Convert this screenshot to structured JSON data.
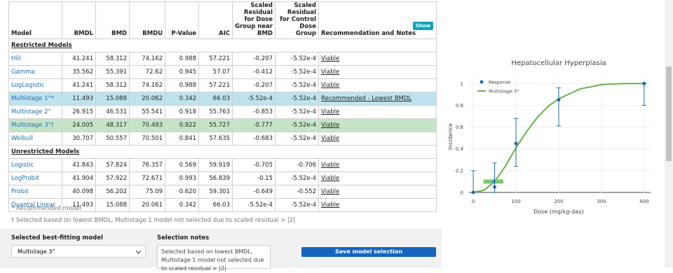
{
  "table": {
    "headers": [
      "Model",
      "BMDL",
      "BMD",
      "BMDU",
      "P-Value",
      "AIC",
      "Scaled Residual for Dose Group near BMD",
      "Scaled Residual for Control Dose Group",
      "Recommendation and Notes"
    ],
    "show_button": "Show",
    "groups": [
      {
        "label": "Restricted Models",
        "rows": [
          {
            "cells": [
              "Hill",
              "41.241",
              "58.312",
              "74.162",
              "0.988",
              "57.221",
              "-0.207",
              "-5.52e-4",
              "Viable"
            ]
          },
          {
            "cells": [
              "Gamma",
              "35.562",
              "55.391",
              "72.62",
              "0.945",
              "57.07",
              "-0.412",
              "-5.52e-4",
              "Viable"
            ]
          },
          {
            "cells": [
              "LogLogistic",
              "41.241",
              "58.312",
              "74.162",
              "0.988",
              "57.221",
              "-0.207",
              "-5.52e-4",
              "Viable"
            ]
          },
          {
            "cells": [
              "Multistage 1°*",
              "11.493",
              "15.088",
              "20.062",
              "0.342",
              "66.03",
              "-5.52e-4",
              "-5.52e-4",
              "Recommended - Lowest BMDL"
            ],
            "highlight": "#bfe3ee"
          },
          {
            "cells": [
              "Multistage 2°",
              "26.915",
              "46.531",
              "55.541",
              "0.918",
              "55.763",
              "-0.853",
              "-5.52e-4",
              "Viable"
            ]
          },
          {
            "cells": [
              "Multistage 3°†",
              "24.005",
              "48.317",
              "70.493",
              "0.922",
              "55.727",
              "-0.777",
              "-5.52e-4",
              "Viable"
            ],
            "highlight": "#c6e5c8"
          },
          {
            "cells": [
              "Weibull",
              "30.707",
              "50.557",
              "70.501",
              "0.841",
              "57.635",
              "-0.683",
              "-5.52e-4",
              "Viable"
            ]
          }
        ]
      },
      {
        "label": "Unrestricted Models",
        "rows": [
          {
            "cells": [
              "Logistic",
              "41.843",
              "57.824",
              "76.357",
              "0.569",
              "59.919",
              "-0.705",
              "-0.706",
              "Viable"
            ]
          },
          {
            "cells": [
              "LogProbit",
              "41.904",
              "57.922",
              "72.671",
              "0.993",
              "56.839",
              "-0.15",
              "-5.52e-4",
              "Viable"
            ]
          },
          {
            "cells": [
              "Probit",
              "40.098",
              "56.202",
              "75.09",
              "0.620",
              "59.301",
              "-0.649",
              "-0.552",
              "Viable"
            ]
          },
          {
            "cells": [
              "Quantal Linear",
              "11.493",
              "15.088",
              "20.061",
              "0.342",
              "66.03",
              "-5.52e-4",
              "-5.52e-4",
              "Viable"
            ]
          }
        ]
      }
    ]
  },
  "footnotes": [
    "* Recommended model",
    "† Selected based on lowest BMDL, Multistage 1 model not selected due to scaled residual > |2|"
  ],
  "selection": {
    "model_label": "Selected best-fitting model",
    "model_value": "Multistage 3°",
    "notes_label": "Selection notes",
    "notes_value": "Selected based on lowest BMDL, Multistage 1 model not selected due to scaled residual > |2|",
    "button": "Save model selection"
  },
  "chart_data": {
    "type": "scatter",
    "title": "Hepatocellular Hyperplasia",
    "x_label": "Dose (mg/kg-day)",
    "y_label": "Incidence",
    "xlim": [
      -10,
      415
    ],
    "ylim": [
      -0.02,
      1.06
    ],
    "xticks": [
      0,
      100,
      200,
      300,
      400
    ],
    "yticks": [
      0,
      0.2,
      0.4,
      0.6,
      0.8,
      1
    ],
    "grid": true,
    "series": [
      {
        "name": "Response",
        "color": "#1f6ea8",
        "x": [
          0,
          50,
          100,
          200,
          400
        ],
        "values": [
          0,
          0.05,
          0.45,
          0.85,
          1
        ],
        "lower": [
          0,
          0,
          0.24,
          0.61,
          0.8
        ],
        "upper": [
          0.2,
          0.27,
          0.68,
          0.96,
          1
        ]
      },
      {
        "name": "Multistage 3°",
        "color": "#6ab04c",
        "x": [
          0,
          25,
          50,
          75,
          100,
          125,
          150,
          175,
          200,
          250,
          300,
          350,
          400
        ],
        "values": [
          0,
          0.02,
          0.1,
          0.24,
          0.41,
          0.56,
          0.69,
          0.79,
          0.86,
          0.95,
          0.99,
          1,
          1
        ]
      }
    ],
    "bmd": {
      "bmdl": 24.005,
      "bmd": 48.317,
      "bmdu": 70.493,
      "response": 0.1,
      "color": "#7bc96f"
    }
  }
}
